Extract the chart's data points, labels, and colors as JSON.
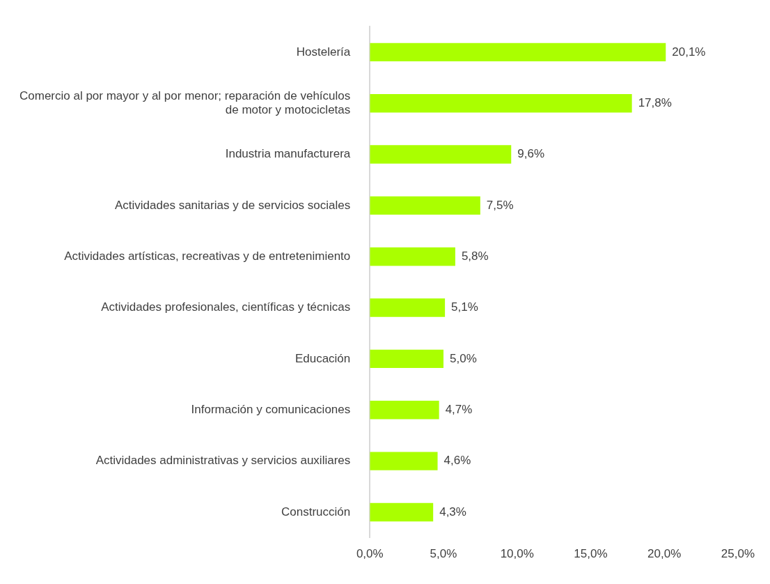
{
  "chart_data": {
    "type": "bar",
    "orientation": "horizontal",
    "categories": [
      "Hostelería",
      "Comercio al por mayor y al por menor; reparación de vehículos de motor y motocicletas",
      "Industria manufacturera",
      "Actividades sanitarias y de servicios sociales",
      "Actividades artísticas, recreativas y de entretenimiento",
      "Actividades profesionales, científicas y técnicas",
      "Educación",
      "Información y comunicaciones",
      "Actividades administrativas y servicios auxiliares",
      "Construcción"
    ],
    "values": [
      20.1,
      17.8,
      9.6,
      7.5,
      5.8,
      5.1,
      5.0,
      4.7,
      4.6,
      4.3
    ],
    "value_labels": [
      "20,1%",
      "17,8%",
      "9,6%",
      "7,5%",
      "5,8%",
      "5,1%",
      "5,0%",
      "4,7%",
      "4,6%",
      "4,3%"
    ],
    "color": "#aaff00",
    "xlim": [
      0,
      25
    ],
    "xticks": [
      {
        "value": 0,
        "label": "0,0%"
      },
      {
        "value": 5,
        "label": "5,0%"
      },
      {
        "value": 10,
        "label": "10,0%"
      },
      {
        "value": 15,
        "label": "15,0%"
      },
      {
        "value": 20,
        "label": "20,0%"
      },
      {
        "value": 25,
        "label": "25,0%"
      }
    ],
    "grid": false,
    "legend": false
  }
}
